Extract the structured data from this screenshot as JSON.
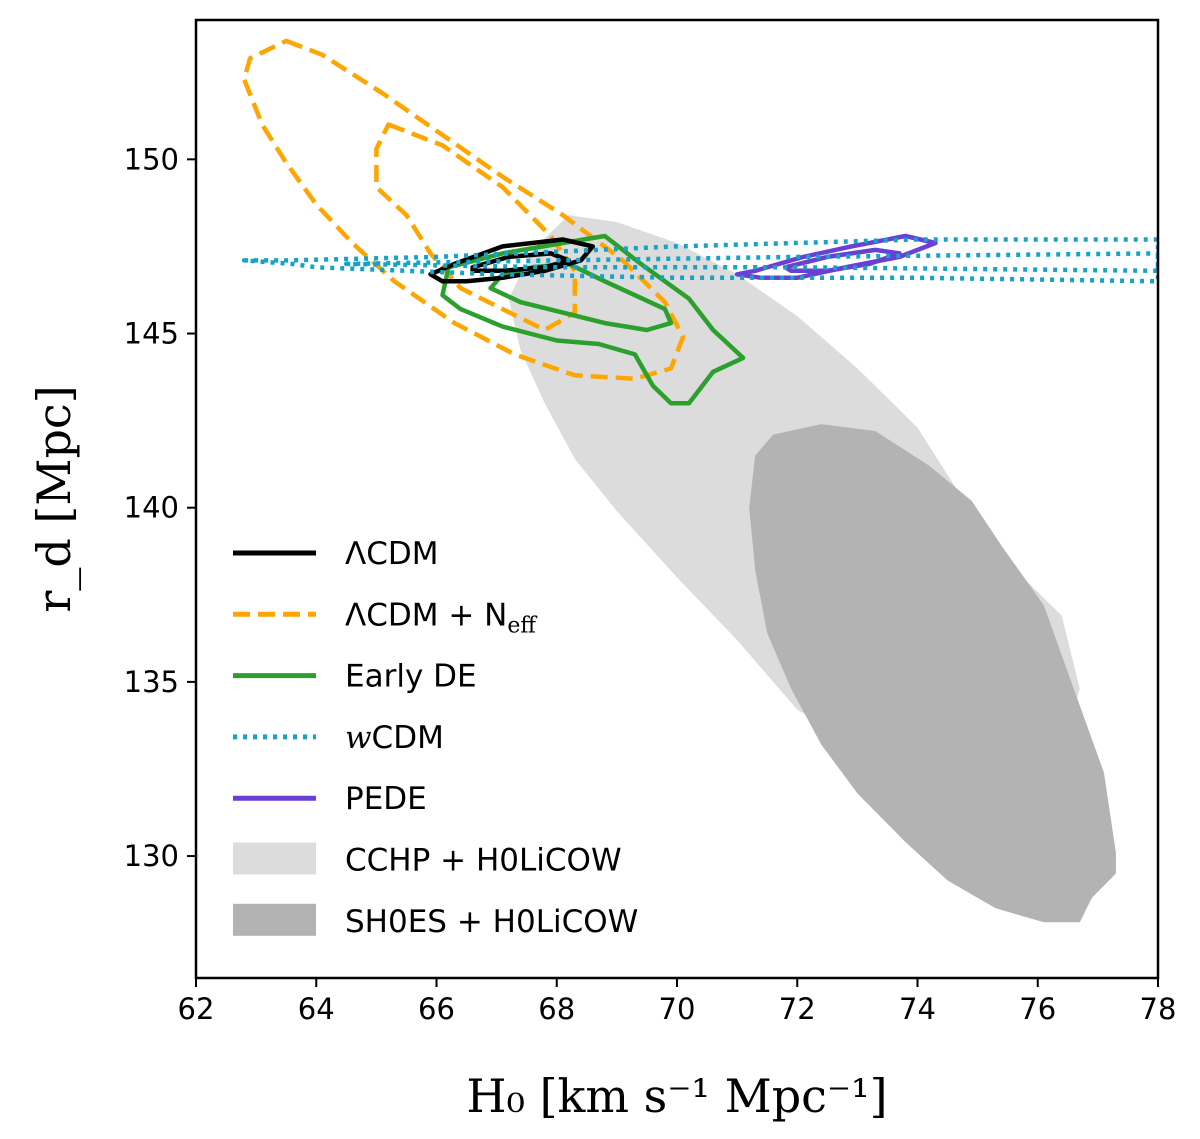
{
  "chart_data": {
    "type": "contour",
    "xlabel": "H₀ [km s⁻¹ Mpc⁻¹]",
    "ylabel": "r_d [Mpc]",
    "xlim": [
      62,
      78
    ],
    "ylim": [
      126.5,
      154
    ],
    "xticks": [
      62,
      64,
      66,
      68,
      70,
      72,
      74,
      76,
      78
    ],
    "yticks": [
      130,
      135,
      140,
      145,
      150
    ],
    "grid": false,
    "legend_position": "lower-left",
    "colors": {
      "lcdm": "#000000",
      "neff": "#ffa500",
      "ede": "#2ca02c",
      "wcdm": "#17a2c8",
      "pede": "#6a3fd4",
      "cchp": "#dcdcdc",
      "shoes": "#b3b3b3"
    },
    "legend": [
      {
        "key": "lcdm",
        "label": "ΛCDM",
        "style": "solid"
      },
      {
        "key": "neff",
        "label": "ΛCDM + N",
        "sub": "eff",
        "style": "dashed"
      },
      {
        "key": "ede",
        "label": "Early DE",
        "style": "solid"
      },
      {
        "key": "wcdm",
        "label": "CDM",
        "prefix": "w",
        "style": "dotted"
      },
      {
        "key": "pede",
        "label": "PEDE",
        "style": "solid"
      },
      {
        "key": "cchp",
        "label": "CCHP + H0LiCOW",
        "style": "fill"
      },
      {
        "key": "shoes",
        "label": "SH0ES + H0LiCOW",
        "style": "fill"
      }
    ],
    "series": [
      {
        "name": "CCHP + H0LiCOW",
        "key": "cchp",
        "kind": "fill",
        "points": [
          [
            68.2,
            148.4
          ],
          [
            69.0,
            148.2
          ],
          [
            70.0,
            147.6
          ],
          [
            71.0,
            146.7
          ],
          [
            72.0,
            145.5
          ],
          [
            73.0,
            144.0
          ],
          [
            74.0,
            142.3
          ],
          [
            74.7,
            140.4
          ],
          [
            75.4,
            138.6
          ],
          [
            76.4,
            136.9
          ],
          [
            76.7,
            134.8
          ],
          [
            76.4,
            133.1
          ],
          [
            75.6,
            132.2
          ],
          [
            74.5,
            132.0
          ],
          [
            73.0,
            133.2
          ],
          [
            72.0,
            134.2
          ],
          [
            71.0,
            136.2
          ],
          [
            70.0,
            138.0
          ],
          [
            69.0,
            139.9
          ],
          [
            68.3,
            141.4
          ],
          [
            67.8,
            143.0
          ],
          [
            67.4,
            144.5
          ],
          [
            67.2,
            146.0
          ],
          [
            67.6,
            147.4
          ],
          [
            68.2,
            148.4
          ]
        ]
      },
      {
        "name": "SH0ES + H0LiCOW",
        "key": "shoes",
        "kind": "fill",
        "points": [
          [
            72.4,
            142.4
          ],
          [
            73.3,
            142.2
          ],
          [
            74.2,
            141.2
          ],
          [
            74.9,
            140.2
          ],
          [
            75.4,
            138.9
          ],
          [
            76.1,
            137.2
          ],
          [
            76.6,
            134.8
          ],
          [
            77.1,
            132.4
          ],
          [
            77.3,
            130.1
          ],
          [
            77.3,
            129.5
          ],
          [
            76.9,
            128.8
          ],
          [
            76.7,
            128.1
          ],
          [
            76.1,
            128.1
          ],
          [
            75.3,
            128.5
          ],
          [
            74.5,
            129.3
          ],
          [
            73.8,
            130.4
          ],
          [
            73.0,
            131.8
          ],
          [
            72.4,
            133.2
          ],
          [
            71.9,
            134.8
          ],
          [
            71.5,
            136.4
          ],
          [
            71.3,
            138.2
          ],
          [
            71.2,
            140.0
          ],
          [
            71.3,
            141.5
          ],
          [
            71.6,
            142.1
          ],
          [
            72.4,
            142.4
          ]
        ]
      },
      {
        "name": "ΛCDM + N_eff (outer)",
        "key": "neff",
        "kind": "dashed",
        "points": [
          [
            63.5,
            153.4
          ],
          [
            64.1,
            153.0
          ],
          [
            65.1,
            151.9
          ],
          [
            66.1,
            150.7
          ],
          [
            67.1,
            149.5
          ],
          [
            68.1,
            148.4
          ],
          [
            69.1,
            147.1
          ],
          [
            69.8,
            145.9
          ],
          [
            70.1,
            144.9
          ],
          [
            69.9,
            144.0
          ],
          [
            69.3,
            143.7
          ],
          [
            68.3,
            143.8
          ],
          [
            67.3,
            144.4
          ],
          [
            66.3,
            145.3
          ],
          [
            65.3,
            146.5
          ],
          [
            64.6,
            147.6
          ],
          [
            64.0,
            148.7
          ],
          [
            63.5,
            149.9
          ],
          [
            63.1,
            151.0
          ],
          [
            62.8,
            152.3
          ],
          [
            62.9,
            152.9
          ],
          [
            63.5,
            153.4
          ]
        ]
      },
      {
        "name": "ΛCDM + N_eff (inner)",
        "key": "neff",
        "kind": "dashed",
        "points": [
          [
            65.2,
            151.0
          ],
          [
            66.1,
            150.4
          ],
          [
            67.1,
            149.2
          ],
          [
            67.9,
            147.8
          ],
          [
            68.3,
            146.8
          ],
          [
            68.3,
            145.6
          ],
          [
            67.8,
            145.1
          ],
          [
            67.1,
            145.7
          ],
          [
            66.4,
            146.3
          ],
          [
            65.9,
            147.3
          ],
          [
            65.5,
            148.4
          ],
          [
            65.0,
            149.2
          ],
          [
            65.0,
            150.3
          ],
          [
            65.2,
            151.0
          ]
        ]
      },
      {
        "name": "Early DE (outer)",
        "key": "ede",
        "kind": "solid",
        "points": [
          [
            68.8,
            147.8
          ],
          [
            69.4,
            147.0
          ],
          [
            70.2,
            146.0
          ],
          [
            70.6,
            145.1
          ],
          [
            71.1,
            144.3
          ],
          [
            70.6,
            143.9
          ],
          [
            70.2,
            143.0
          ],
          [
            69.9,
            143.0
          ],
          [
            69.6,
            143.5
          ],
          [
            69.3,
            144.4
          ],
          [
            68.7,
            144.7
          ],
          [
            68.0,
            144.8
          ],
          [
            67.1,
            145.2
          ],
          [
            66.4,
            145.7
          ],
          [
            66.1,
            146.1
          ],
          [
            66.2,
            146.9
          ],
          [
            67.1,
            147.3
          ],
          [
            68.1,
            147.6
          ],
          [
            68.8,
            147.8
          ]
        ]
      },
      {
        "name": "Early DE (inner)",
        "key": "ede",
        "kind": "solid",
        "points": [
          [
            68.2,
            147.0
          ],
          [
            68.8,
            146.5
          ],
          [
            69.3,
            146.1
          ],
          [
            69.8,
            145.7
          ],
          [
            69.9,
            145.3
          ],
          [
            69.5,
            145.1
          ],
          [
            68.8,
            145.3
          ],
          [
            68.1,
            145.6
          ],
          [
            67.4,
            145.9
          ],
          [
            66.9,
            146.3
          ],
          [
            67.1,
            146.7
          ],
          [
            67.6,
            146.9
          ],
          [
            68.2,
            147.0
          ]
        ]
      },
      {
        "name": "ΛCDM (outer)",
        "key": "lcdm",
        "kind": "solid",
        "points": [
          [
            66.3,
            147.0
          ],
          [
            67.1,
            147.5
          ],
          [
            68.1,
            147.7
          ],
          [
            68.6,
            147.5
          ],
          [
            68.4,
            147.1
          ],
          [
            67.8,
            146.8
          ],
          [
            67.1,
            146.6
          ],
          [
            66.5,
            146.5
          ],
          [
            66.1,
            146.5
          ],
          [
            65.9,
            146.7
          ],
          [
            66.3,
            147.0
          ]
        ]
      },
      {
        "name": "ΛCDM (inner)",
        "key": "lcdm",
        "kind": "solid",
        "points": [
          [
            66.6,
            146.9
          ],
          [
            67.2,
            147.2
          ],
          [
            67.9,
            147.3
          ],
          [
            68.2,
            147.1
          ],
          [
            67.8,
            146.9
          ],
          [
            67.1,
            146.8
          ],
          [
            66.6,
            146.8
          ],
          [
            66.6,
            146.9
          ]
        ]
      },
      {
        "name": "PEDE (outer)",
        "key": "pede",
        "kind": "solid",
        "points": [
          [
            71.3,
            146.8
          ],
          [
            72.1,
            147.2
          ],
          [
            72.9,
            147.5
          ],
          [
            73.8,
            147.8
          ],
          [
            74.3,
            147.6
          ],
          [
            73.7,
            147.2
          ],
          [
            72.8,
            146.9
          ],
          [
            72.0,
            146.6
          ],
          [
            71.4,
            146.6
          ],
          [
            71.0,
            146.7
          ],
          [
            71.3,
            146.8
          ]
        ]
      },
      {
        "name": "PEDE (inner)",
        "key": "pede",
        "kind": "solid",
        "points": [
          [
            71.8,
            146.9
          ],
          [
            72.5,
            147.2
          ],
          [
            73.3,
            147.4
          ],
          [
            73.7,
            147.3
          ],
          [
            73.2,
            147.0
          ],
          [
            72.5,
            146.8
          ],
          [
            71.9,
            146.8
          ],
          [
            71.8,
            146.9
          ]
        ]
      },
      {
        "name": "wCDM (outer)",
        "key": "wcdm",
        "kind": "dotted",
        "points": [
          [
            62.8,
            147.1
          ],
          [
            63.5,
            147.1
          ],
          [
            66.0,
            147.2
          ],
          [
            70.0,
            147.5
          ],
          [
            74.0,
            147.7
          ],
          [
            78.0,
            147.7
          ],
          [
            78.0,
            146.5
          ],
          [
            74.0,
            146.6
          ],
          [
            70.0,
            146.6
          ],
          [
            67.0,
            146.7
          ],
          [
            64.0,
            146.9
          ],
          [
            63.6,
            147.0
          ],
          [
            62.8,
            147.1
          ]
        ]
      },
      {
        "name": "wCDM (inner)",
        "key": "wcdm",
        "kind": "dotted",
        "points": [
          [
            64.5,
            147.0
          ],
          [
            68.0,
            147.1
          ],
          [
            72.0,
            147.2
          ],
          [
            78.0,
            147.3
          ],
          [
            78.0,
            146.8
          ],
          [
            72.0,
            146.9
          ],
          [
            68.0,
            146.9
          ],
          [
            64.5,
            147.0
          ]
        ]
      }
    ]
  }
}
